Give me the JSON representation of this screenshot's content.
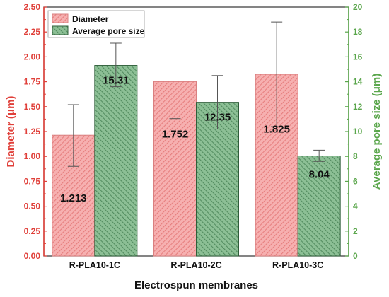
{
  "chart_data": {
    "type": "bar",
    "categories": [
      "R-PLA10-1C",
      "R-PLA10-2C",
      "R-PLA10-3C"
    ],
    "xlabel": "Electrospun membranes",
    "ylabel_left": "Diameter (μm)",
    "ylabel_right": "Average pore size (μm)",
    "ylim_left": [
      0,
      2.5
    ],
    "ylim_right": [
      0,
      20
    ],
    "yticks_left": [
      "0.00",
      "0.25",
      "0.50",
      "0.75",
      "1.00",
      "1.25",
      "1.50",
      "1.75",
      "2.00",
      "2.25",
      "2.50"
    ],
    "yticks_right": [
      "0",
      "2",
      "4",
      "6",
      "8",
      "10",
      "12",
      "14",
      "16",
      "18",
      "20"
    ],
    "legend_position": "top-left",
    "grid": false,
    "series": [
      {
        "name": "Diameter",
        "axis": "left",
        "values": [
          1.213,
          1.752,
          1.825
        ],
        "labels": [
          "1.213",
          "1.752",
          "1.825"
        ],
        "err_low": [
          0.9,
          1.38,
          1.3
        ],
        "err_high": [
          1.52,
          2.12,
          2.35
        ],
        "fill": "#f4a3a3",
        "hatch": "#e07070",
        "edge": "#d98080"
      },
      {
        "name": "Average pore size",
        "axis": "right",
        "values": [
          15.31,
          12.35,
          8.04
        ],
        "labels": [
          "15.31",
          "12.35",
          "8.04"
        ],
        "err_low": [
          13.6,
          10.2,
          7.6
        ],
        "err_high": [
          17.1,
          14.5,
          8.5
        ],
        "fill": "#7fb58a",
        "hatch": "#3f7d4e",
        "edge": "#2f5f3a"
      }
    ],
    "colors": {
      "left_axis": "#e0403a",
      "right_axis": "#5aa64b",
      "frame": "#333333",
      "error_bar": "#555555"
    }
  }
}
